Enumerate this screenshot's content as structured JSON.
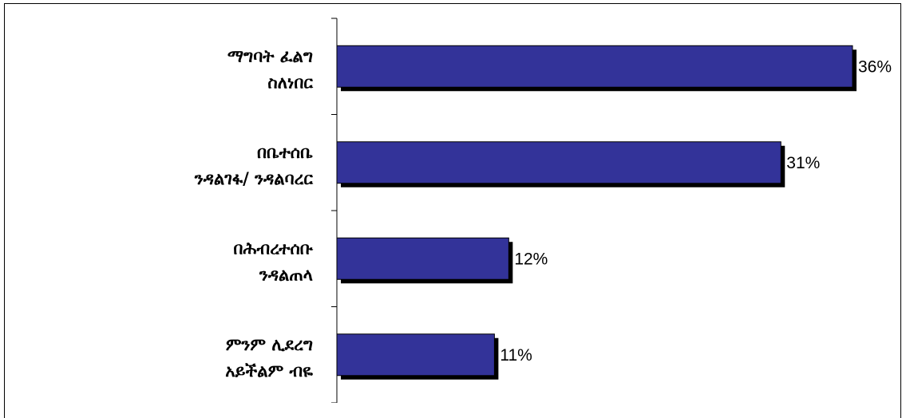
{
  "chart_data": {
    "type": "bar",
    "orientation": "horizontal",
    "categories": [
      [
        "ማግባት   ፈልግ",
        "ስለነበር"
      ],
      [
        "በቤተሰቤ",
        "ንዳልገፋ/  ንዳልባረር"
      ],
      [
        "በሕብረተሰቡ",
        "ንዳልጠላ"
      ],
      [
        "ምንም  ሊደረግ",
        "አይችልም  ብዬ"
      ]
    ],
    "values": [
      36,
      31,
      12,
      11
    ],
    "value_labels": [
      "36%",
      "31%",
      "12%",
      "11%"
    ],
    "unit": "%",
    "xlim": [
      0,
      40
    ],
    "title": "",
    "xlabel": "",
    "ylabel": "",
    "grid": false,
    "legend": "none",
    "colors": {
      "bar": "#333399",
      "shadow": "#000000",
      "axis": "#000000"
    }
  }
}
